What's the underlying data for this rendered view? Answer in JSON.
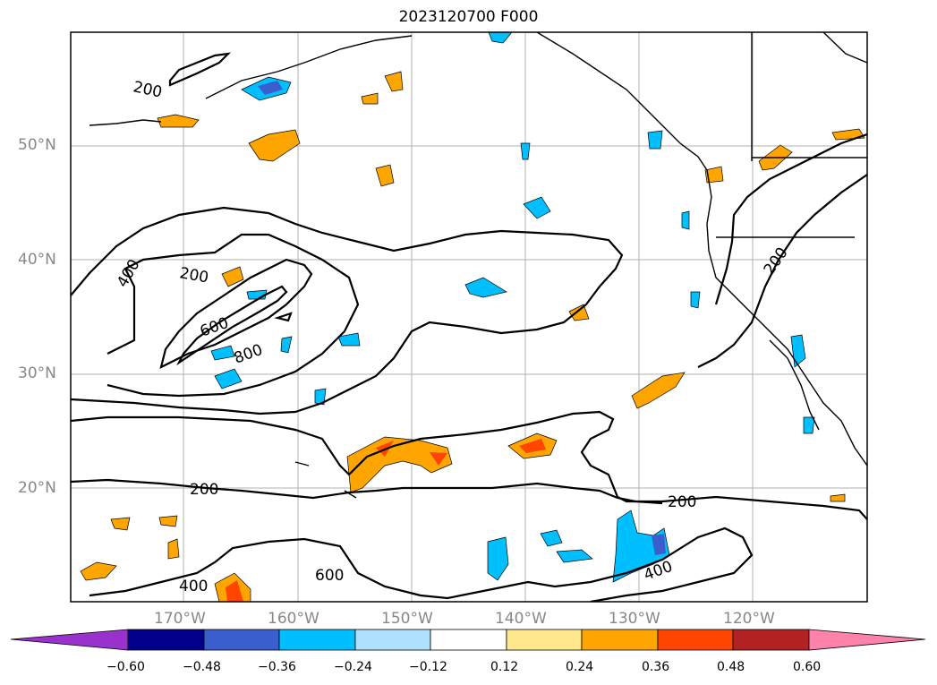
{
  "title": "2023120700 F000",
  "lat_labels": [
    "50°N",
    "40°N",
    "30°N",
    "20°N"
  ],
  "lon_labels": [
    "170°W",
    "160°W",
    "150°W",
    "140°W",
    "130°W",
    "120°W"
  ],
  "contour_labels": [
    "200",
    "400",
    "200",
    "600",
    "800",
    "200",
    "200",
    "200",
    "400",
    "600",
    "400"
  ],
  "colorbar": {
    "ticks": [
      "−0.60",
      "−0.48",
      "−0.36",
      "−0.24",
      "−0.12",
      "0.12",
      "0.24",
      "0.36",
      "0.48",
      "0.60"
    ],
    "colors": [
      "#9932cc",
      "#00008b",
      "#3a5fcd",
      "#00bfff",
      "#b0e2ff",
      "#ffffff",
      "#ffe88c",
      "#ffa500",
      "#ff4500",
      "#b22222",
      "#ff82ab"
    ]
  },
  "chart_data": {
    "type": "heatmap",
    "title": "2023120700 F000",
    "region": {
      "lon_range": [
        -180,
        -110
      ],
      "lat_range": [
        10,
        60
      ]
    },
    "contour_levels": [
      200,
      400,
      600,
      800
    ],
    "colorbar_levels": [
      -0.6,
      -0.48,
      -0.36,
      -0.24,
      -0.12,
      0.12,
      0.24,
      0.36,
      0.48,
      0.6
    ],
    "grid": true
  }
}
